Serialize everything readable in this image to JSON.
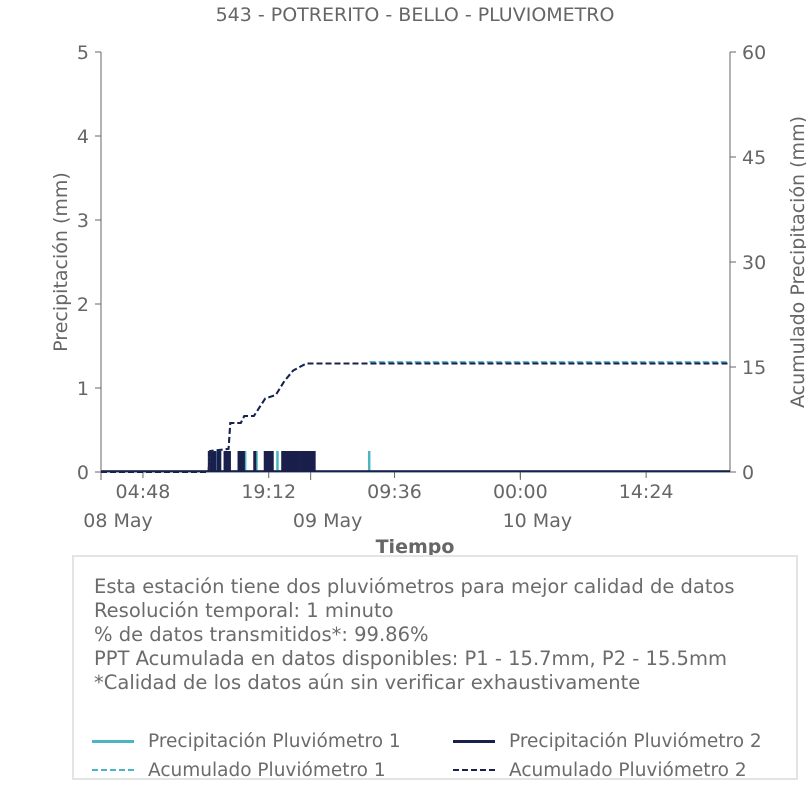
{
  "chart_data": {
    "type": "bar+line",
    "title": "543 - POTRERITO - BELLO - PLUVIOMETRO",
    "xlabel": "Tiempo",
    "ylabel_left": "Precipitación (mm)",
    "ylabel_right": "Acumulado Precipitación (mm)",
    "ylim_left": [
      0,
      5
    ],
    "ylim_right": [
      0,
      60
    ],
    "yticks_left": [
      "0",
      "1",
      "2",
      "3",
      "4",
      "5"
    ],
    "yticks_right": [
      "0",
      "15",
      "30",
      "45",
      "60"
    ],
    "xlim_hours": [
      0,
      72
    ],
    "xticks": [
      {
        "h": 4.8,
        "label": "04:48"
      },
      {
        "h": 19.2,
        "label": "19:12"
      },
      {
        "h": 33.6,
        "label": "09:36"
      },
      {
        "h": 48.0,
        "label": "00:00"
      },
      {
        "h": 62.4,
        "label": "14:24"
      }
    ],
    "date_labels": [
      {
        "h": 0,
        "label": "08 May"
      },
      {
        "h": 24,
        "label": "09 May"
      },
      {
        "h": 48,
        "label": "10 May"
      }
    ],
    "colors": {
      "p1": "#4bb5c1",
      "p2": "#1b1f4b"
    },
    "series": [
      {
        "name": "Precipitación Pluviómetro 1",
        "kind": "bar",
        "points": [
          [
            12.4,
            0.25
          ],
          [
            12.7,
            0.25
          ],
          [
            13.2,
            0.25
          ],
          [
            14.3,
            0.25
          ],
          [
            15.9,
            0.25
          ],
          [
            16.5,
            0.25
          ],
          [
            17.8,
            0.25
          ],
          [
            19.3,
            0.25
          ],
          [
            20.2,
            0.25
          ],
          [
            21.8,
            0.25
          ],
          [
            30.7,
            0.25
          ]
        ]
      },
      {
        "name": "Precipitación Pluviómetro 2",
        "kind": "bar",
        "points": [
          [
            12.4,
            0.25
          ],
          [
            12.6,
            0.25
          ],
          [
            12.8,
            0.25
          ],
          [
            13.0,
            0.25
          ],
          [
            13.4,
            0.25
          ],
          [
            13.6,
            0.25
          ],
          [
            14.2,
            0.25
          ],
          [
            14.4,
            0.25
          ],
          [
            14.7,
            0.25
          ],
          [
            15.8,
            0.25
          ],
          [
            16.0,
            0.25
          ],
          [
            16.3,
            0.25
          ],
          [
            17.6,
            0.25
          ],
          [
            18.8,
            0.25
          ],
          [
            19.0,
            0.25
          ],
          [
            19.3,
            0.25
          ],
          [
            19.6,
            0.25
          ],
          [
            20.8,
            0.25
          ],
          [
            21.0,
            0.25
          ],
          [
            21.2,
            0.25
          ],
          [
            21.4,
            0.25
          ],
          [
            21.6,
            0.25
          ],
          [
            21.8,
            0.25
          ],
          [
            22.0,
            0.25
          ],
          [
            22.2,
            0.25
          ],
          [
            22.4,
            0.25
          ],
          [
            22.6,
            0.25
          ],
          [
            22.9,
            0.25
          ],
          [
            23.1,
            0.25
          ],
          [
            23.4,
            0.25
          ],
          [
            23.6,
            0.25
          ],
          [
            23.9,
            0.25
          ],
          [
            24.2,
            0.25
          ],
          [
            24.4,
            0.25
          ]
        ]
      },
      {
        "name": "Acumulado Pluviómetro 1",
        "kind": "line",
        "dash": true,
        "points": [
          [
            0,
            0
          ],
          [
            12.3,
            0
          ],
          [
            12.5,
            3.0
          ],
          [
            14.6,
            3.3
          ],
          [
            14.8,
            7.0
          ],
          [
            16.0,
            7.0
          ],
          [
            16.4,
            8.0
          ],
          [
            17.5,
            8.0
          ],
          [
            18.8,
            10.5
          ],
          [
            20.0,
            11.0
          ],
          [
            21.0,
            13.0
          ],
          [
            22.0,
            14.5
          ],
          [
            23.5,
            15.5
          ],
          [
            30.7,
            15.5
          ],
          [
            30.8,
            15.7
          ],
          [
            72,
            15.7
          ]
        ]
      },
      {
        "name": "Acumulado Pluviómetro 2",
        "kind": "line",
        "dash": true,
        "points": [
          [
            0,
            0
          ],
          [
            12.3,
            0
          ],
          [
            12.5,
            3.0
          ],
          [
            14.6,
            3.3
          ],
          [
            14.8,
            7.0
          ],
          [
            16.0,
            7.0
          ],
          [
            16.4,
            8.0
          ],
          [
            17.5,
            8.0
          ],
          [
            18.8,
            10.5
          ],
          [
            20.0,
            11.0
          ],
          [
            21.0,
            13.0
          ],
          [
            22.0,
            14.5
          ],
          [
            23.5,
            15.5
          ],
          [
            72,
            15.5
          ]
        ]
      }
    ]
  },
  "info": {
    "line1": "Esta estación tiene dos pluviómetros para mejor calidad de datos",
    "line2": "Resolución temporal: 1 minuto",
    "line3": "% de datos transmitidos*: 99.86%",
    "line4": "PPT Acumulada en datos disponibles: P1 - 15.7mm, P2 - 15.5mm",
    "line5": "*Calidad de los datos aún sin verificar exhaustivamente"
  },
  "legend": {
    "p1_precip": "Precipitación Pluviómetro 1",
    "p2_precip": "Precipitación Pluviómetro 2",
    "p1_acum": "Acumulado Pluviómetro 1",
    "p2_acum": "Acumulado Pluviómetro 2"
  }
}
